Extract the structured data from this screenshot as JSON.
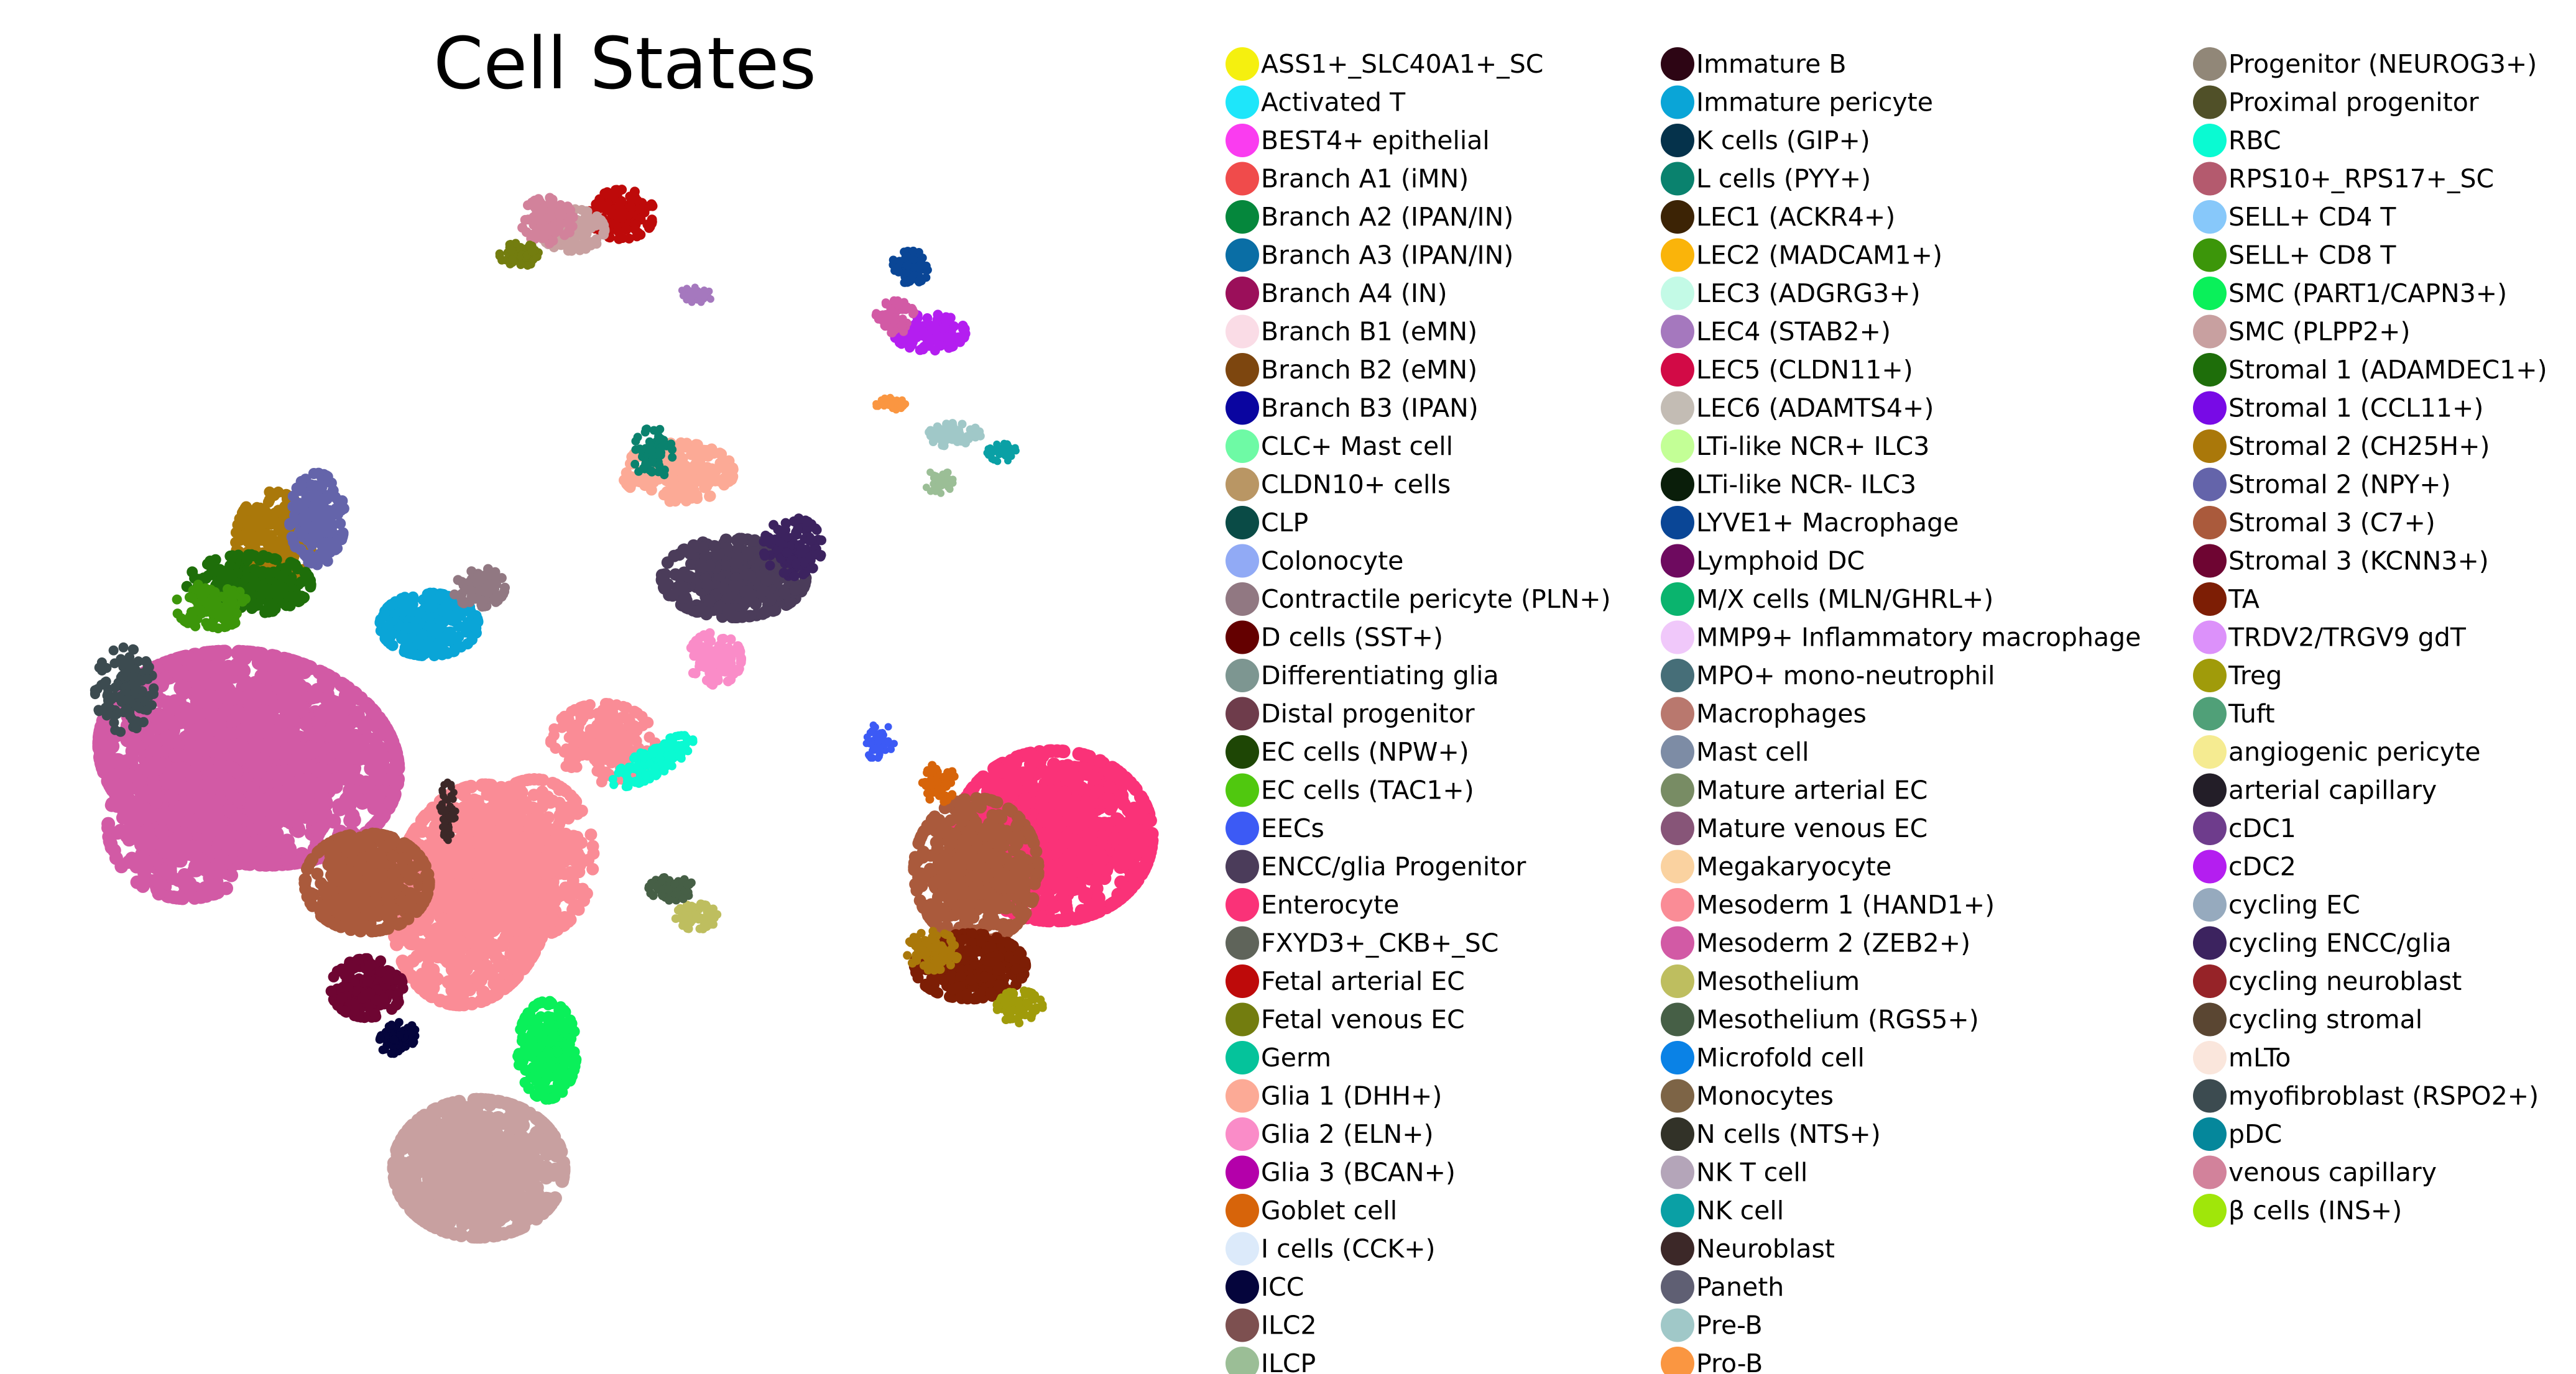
{
  "chart_data": {
    "type": "scatter",
    "title": "Cell States",
    "xlabel": "",
    "ylabel": "",
    "grid": false,
    "legend_placement": "right",
    "series": [
      {
        "name": "ASS1+_SLC40A1+_SC",
        "color": "#f5f00f"
      },
      {
        "name": "Activated T",
        "color": "#1ee6fa"
      },
      {
        "name": "BEST4+ epithelial",
        "color": "#fa3cf0"
      },
      {
        "name": "Branch A1 (iMN)",
        "color": "#f04b4b"
      },
      {
        "name": "Branch A2 (IPAN/IN)",
        "color": "#05873c"
      },
      {
        "name": "Branch A3 (IPAN/IN)",
        "color": "#0a6ea5"
      },
      {
        "name": "Branch A4 (IN)",
        "color": "#9b0f5a"
      },
      {
        "name": "Branch B1 (eMN)",
        "color": "#fadce6"
      },
      {
        "name": "Branch B2 (eMN)",
        "color": "#7d460f"
      },
      {
        "name": "Branch B3 (IPAN)",
        "color": "#0a05a0"
      },
      {
        "name": "CLC+ Mast cell",
        "color": "#6efaa5"
      },
      {
        "name": "CLDN10+ cells",
        "color": "#b99664"
      },
      {
        "name": "CLP",
        "color": "#0a4b46"
      },
      {
        "name": "Colonocyte",
        "color": "#91aaf5"
      },
      {
        "name": "Contractile pericyte (PLN+)",
        "color": "#917882"
      },
      {
        "name": "D cells (SST+)",
        "color": "#640000"
      },
      {
        "name": "Differentiating glia",
        "color": "#7d9691"
      },
      {
        "name": "Distal progenitor",
        "color": "#6e3c4b"
      },
      {
        "name": "EC cells (NPW+)",
        "color": "#1e4605"
      },
      {
        "name": "EC cells (TAC1+)",
        "color": "#50c80f"
      },
      {
        "name": "EECs",
        "color": "#3c5af5"
      },
      {
        "name": "ENCC/glia Progenitor",
        "color": "#4b3c5a"
      },
      {
        "name": "Enterocyte",
        "color": "#fa3278"
      },
      {
        "name": "FXYD3+_CKB+_SC",
        "color": "#5f645a"
      },
      {
        "name": "Fetal arterial EC",
        "color": "#be0a0a"
      },
      {
        "name": "Fetal venous EC",
        "color": "#737d0f"
      },
      {
        "name": "Germ",
        "color": "#05c39b"
      },
      {
        "name": "Glia 1 (DHH+)",
        "color": "#fcaa96"
      },
      {
        "name": "Glia 2 (ELN+)",
        "color": "#fa8cc8"
      },
      {
        "name": "Glia 3 (BCAN+)",
        "color": "#b400aa"
      },
      {
        "name": "Goblet cell",
        "color": "#d7640a"
      },
      {
        "name": "I cells (CCK+)",
        "color": "#dceafa"
      },
      {
        "name": "ICC",
        "color": "#05053c"
      },
      {
        "name": "ILC2",
        "color": "#7d5050"
      },
      {
        "name": "ILCP",
        "color": "#9bbe96"
      },
      {
        "name": "Immature B",
        "color": "#2d0514"
      },
      {
        "name": "Immature pericyte",
        "color": "#0aa5d7"
      },
      {
        "name": "K cells (GIP+)",
        "color": "#05324b"
      },
      {
        "name": "L cells (PYY+)",
        "color": "#0a826e"
      },
      {
        "name": "LEC1 (ACKR4+)",
        "color": "#3c2305"
      },
      {
        "name": "LEC2 (MADCAM1+)",
        "color": "#fab40a"
      },
      {
        "name": "LEC3 (ADGRG3+)",
        "color": "#c3fae6"
      },
      {
        "name": "LEC4 (STAB2+)",
        "color": "#a578be"
      },
      {
        "name": "LEC5 (CLDN11+)",
        "color": "#d20a46"
      },
      {
        "name": "LEC6 (ADAMTS4+)",
        "color": "#c3bcb4"
      },
      {
        "name": "LTi-like NCR+ ILC3",
        "color": "#c3ff96"
      },
      {
        "name": "LTi-like NCR- ILC3",
        "color": "#0a1e0a"
      },
      {
        "name": "LYVE1+ Macrophage",
        "color": "#0a4696"
      },
      {
        "name": "Lymphoid DC",
        "color": "#6e0a5f"
      },
      {
        "name": "M/X cells (MLN/GHRL+)",
        "color": "#0ab46e"
      },
      {
        "name": "MMP9+ Inflammatory macrophage",
        "color": "#f0c8fa"
      },
      {
        "name": "MPO+ mono-neutrophil",
        "color": "#466e78"
      },
      {
        "name": "Macrophages",
        "color": "#b9786e"
      },
      {
        "name": "Mast cell",
        "color": "#7d8ca5"
      },
      {
        "name": "Mature arterial EC",
        "color": "#788c64"
      },
      {
        "name": "Mature venous EC",
        "color": "#875578"
      },
      {
        "name": "Megakaryocyte",
        "color": "#fad2a0"
      },
      {
        "name": "Mesoderm 1 (HAND1+)",
        "color": "#fa8c96"
      },
      {
        "name": "Mesoderm 2 (ZEB2+)",
        "color": "#d25aa5"
      },
      {
        "name": "Mesothelium",
        "color": "#bebe5f"
      },
      {
        "name": "Mesothelium (RGS5+)",
        "color": "#465f46"
      },
      {
        "name": "Microfold cell",
        "color": "#0a82e6"
      },
      {
        "name": "Monocytes",
        "color": "#7d6446"
      },
      {
        "name": "N cells (NTS+)",
        "color": "#323228"
      },
      {
        "name": "NK T cell",
        "color": "#b4a5b9"
      },
      {
        "name": "NK cell",
        "color": "#0aa0a5"
      },
      {
        "name": "Neuroblast",
        "color": "#3c2828"
      },
      {
        "name": "Paneth",
        "color": "#5f5f73"
      },
      {
        "name": "Pre-B",
        "color": "#a0c8c8"
      },
      {
        "name": "Pro-B",
        "color": "#fa9641"
      },
      {
        "name": "Progenitor (NEUROG3+)",
        "color": "#918778"
      },
      {
        "name": "Proximal progenitor",
        "color": "#505028"
      },
      {
        "name": "RBC",
        "color": "#0afad2"
      },
      {
        "name": "RPS10+_RPS17+_SC",
        "color": "#b45a6e"
      },
      {
        "name": "SELL+ CD4 T",
        "color": "#87c8fa"
      },
      {
        "name": "SELL+ CD8 T",
        "color": "#3c960a"
      },
      {
        "name": "SMC (PART1/CAPN3+)",
        "color": "#0af05a"
      },
      {
        "name": "SMC (PLPP2+)",
        "color": "#c8a0a0"
      },
      {
        "name": "Stromal 1 (ADAMDEC1+)",
        "color": "#1e6e0a"
      },
      {
        "name": "Stromal 1 (CCL11+)",
        "color": "#780ae6"
      },
      {
        "name": "Stromal 2 (CH25H+)",
        "color": "#aa780a"
      },
      {
        "name": "Stromal 2 (NPY+)",
        "color": "#6464aa"
      },
      {
        "name": "Stromal 3 (C7+)",
        "color": "#aa5a3c"
      },
      {
        "name": "Stromal 3 (KCNN3+)",
        "color": "#6e0532"
      },
      {
        "name": "TA",
        "color": "#7d1e05"
      },
      {
        "name": "TRDV2/TRGV9 gdT",
        "color": "#dc91fa"
      },
      {
        "name": "Treg",
        "color": "#a09b0a"
      },
      {
        "name": "Tuft",
        "color": "#50a078"
      },
      {
        "name": "angiogenic pericyte",
        "color": "#f5eb91"
      },
      {
        "name": "arterial capillary",
        "color": "#231e28"
      },
      {
        "name": "cDC1",
        "color": "#6e3c8c"
      },
      {
        "name": "cDC2",
        "color": "#b41ef0"
      },
      {
        "name": "cycling EC",
        "color": "#96aabe"
      },
      {
        "name": "cycling ENCC/glia",
        "color": "#3c235f"
      },
      {
        "name": "cycling neuroblast",
        "color": "#962328"
      },
      {
        "name": "cycling stromal",
        "color": "#5a4632"
      },
      {
        "name": "mLTo",
        "color": "#fae6dc"
      },
      {
        "name": "myofibroblast (RSPO2+)",
        "color": "#3c4b50"
      },
      {
        "name": "pDC",
        "color": "#05879b"
      },
      {
        "name": "venous capillary",
        "color": "#d2829b"
      },
      {
        "name": "β cells (INS+)",
        "color": "#a0e60a"
      }
    ]
  }
}
